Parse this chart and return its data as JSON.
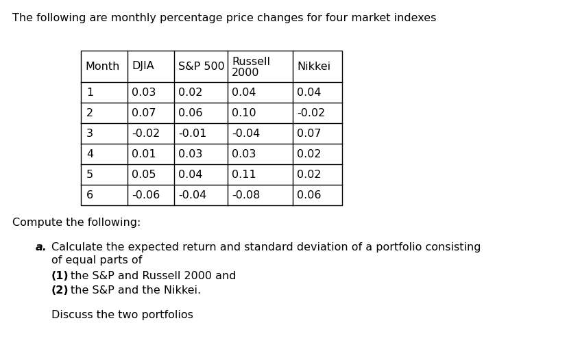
{
  "title": "The following are monthly percentage price changes for four market indexes",
  "table_headers_line1": [
    "Month",
    "DJIA",
    "S&P 500",
    "Russell",
    "Nikkei"
  ],
  "table_headers_line2": [
    "",
    "",
    "",
    "2000",
    ""
  ],
  "table_data": [
    [
      "1",
      "0.03",
      "0.02",
      "0.04",
      "0.04"
    ],
    [
      "2",
      "0.07",
      "0.06",
      "0.10",
      "-0.02"
    ],
    [
      "3",
      "-0.02",
      "-0.01",
      "-0.04",
      "0.07"
    ],
    [
      "4",
      "0.01",
      "0.03",
      "0.03",
      "0.02"
    ],
    [
      "5",
      "0.05",
      "0.04",
      "0.11",
      "0.02"
    ],
    [
      "6",
      "-0.06",
      "-0.04",
      "-0.08",
      "0.06"
    ]
  ],
  "compute_text": "Compute the following:",
  "item_a_label": "a.",
  "item_a_text": "Calculate the expected return and standard deviation of a portfolio consisting",
  "item_a_text2": "of equal parts of",
  "item_1_label": "(1)",
  "item_1_text": "the S&P and Russell 2000 and",
  "item_2_label": "(2)",
  "item_2_text": "the S&P and the Nikkei.",
  "discuss_text": "Discuss the two portfolios",
  "background_color": "#ffffff",
  "text_color": "#000000",
  "font_size": 11.5,
  "title_font_size": 11.5
}
